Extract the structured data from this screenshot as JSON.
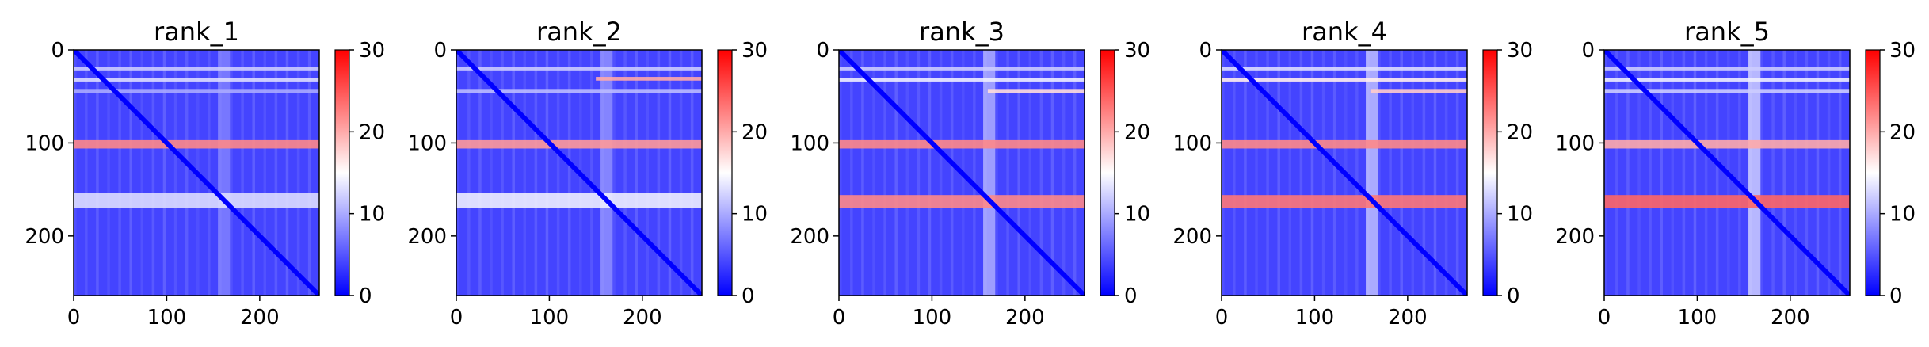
{
  "chart_data": [
    {
      "type": "heatmap",
      "title": "rank_1",
      "matrix_size": 264,
      "xlim": [
        0,
        264
      ],
      "ylim": [
        264,
        0
      ],
      "x_ticks": [
        0,
        100,
        200
      ],
      "y_ticks": [
        0,
        100,
        200
      ],
      "colorbar": {
        "range": [
          0,
          30
        ],
        "ticks": [
          0,
          10,
          20,
          30
        ],
        "colormap": "bwr"
      },
      "diagonal": {
        "value": 0
      },
      "background_level": 4,
      "bands": [
        {
          "y": [
            18,
            22
          ],
          "x": [
            0,
            264
          ],
          "value": 12
        },
        {
          "y": [
            30,
            34
          ],
          "x": [
            0,
            264
          ],
          "value": 13
        },
        {
          "y": [
            42,
            46
          ],
          "x": [
            0,
            264
          ],
          "value": 10
        },
        {
          "y": [
            97,
            106
          ],
          "x": [
            0,
            264
          ],
          "value": 22
        },
        {
          "y": [
            154,
            170
          ],
          "x": [
            0,
            264
          ],
          "value": 13
        }
      ],
      "vertical_bands": [
        {
          "x": [
            155,
            168
          ],
          "value": 8
        }
      ]
    },
    {
      "type": "heatmap",
      "title": "rank_2",
      "matrix_size": 264,
      "xlim": [
        0,
        264
      ],
      "ylim": [
        264,
        0
      ],
      "x_ticks": [
        0,
        100,
        200
      ],
      "y_ticks": [
        0,
        100,
        200
      ],
      "colorbar": {
        "range": [
          0,
          30
        ],
        "ticks": [
          0,
          10,
          20,
          30
        ],
        "colormap": "bwr"
      },
      "diagonal": {
        "value": 0
      },
      "background_level": 4,
      "bands": [
        {
          "y": [
            18,
            22
          ],
          "x": [
            0,
            264
          ],
          "value": 12
        },
        {
          "y": [
            29,
            33
          ],
          "x": [
            150,
            264
          ],
          "value": 20
        },
        {
          "y": [
            42,
            46
          ],
          "x": [
            0,
            264
          ],
          "value": 11
        },
        {
          "y": [
            97,
            106
          ],
          "x": [
            0,
            264
          ],
          "value": 21
        },
        {
          "y": [
            154,
            170
          ],
          "x": [
            0,
            264
          ],
          "value": 14
        }
      ],
      "vertical_bands": [
        {
          "x": [
            155,
            168
          ],
          "value": 9
        }
      ]
    },
    {
      "type": "heatmap",
      "title": "rank_3",
      "matrix_size": 264,
      "xlim": [
        0,
        264
      ],
      "ylim": [
        264,
        0
      ],
      "x_ticks": [
        0,
        100,
        200
      ],
      "y_ticks": [
        0,
        100,
        200
      ],
      "colorbar": {
        "range": [
          0,
          30
        ],
        "ticks": [
          0,
          10,
          20,
          30
        ],
        "colormap": "bwr"
      },
      "diagonal": {
        "value": 0
      },
      "background_level": 4,
      "bands": [
        {
          "y": [
            18,
            22
          ],
          "x": [
            0,
            264
          ],
          "value": 12
        },
        {
          "y": [
            30,
            34
          ],
          "x": [
            0,
            264
          ],
          "value": 14
        },
        {
          "y": [
            42,
            46
          ],
          "x": [
            160,
            264
          ],
          "value": 17
        },
        {
          "y": [
            97,
            106
          ],
          "x": [
            0,
            264
          ],
          "value": 22
        },
        {
          "y": [
            156,
            170
          ],
          "x": [
            0,
            264
          ],
          "value": 22
        }
      ],
      "vertical_bands": [
        {
          "x": [
            155,
            168
          ],
          "value": 11
        }
      ]
    },
    {
      "type": "heatmap",
      "title": "rank_4",
      "matrix_size": 264,
      "xlim": [
        0,
        264
      ],
      "ylim": [
        264,
        0
      ],
      "x_ticks": [
        0,
        100,
        200
      ],
      "y_ticks": [
        0,
        100,
        200
      ],
      "colorbar": {
        "range": [
          0,
          30
        ],
        "ticks": [
          0,
          10,
          20,
          30
        ],
        "colormap": "bwr"
      },
      "diagonal": {
        "value": 0
      },
      "background_level": 4,
      "bands": [
        {
          "y": [
            18,
            22
          ],
          "x": [
            0,
            264
          ],
          "value": 13
        },
        {
          "y": [
            30,
            34
          ],
          "x": [
            0,
            264
          ],
          "value": 16
        },
        {
          "y": [
            42,
            46
          ],
          "x": [
            160,
            264
          ],
          "value": 18
        },
        {
          "y": [
            97,
            106
          ],
          "x": [
            0,
            264
          ],
          "value": 22
        },
        {
          "y": [
            156,
            170
          ],
          "x": [
            0,
            264
          ],
          "value": 23
        }
      ],
      "vertical_bands": [
        {
          "x": [
            155,
            168
          ],
          "value": 12
        }
      ]
    },
    {
      "type": "heatmap",
      "title": "rank_5",
      "matrix_size": 264,
      "xlim": [
        0,
        264
      ],
      "ylim": [
        264,
        0
      ],
      "x_ticks": [
        0,
        100,
        200
      ],
      "y_ticks": [
        0,
        100,
        200
      ],
      "colorbar": {
        "range": [
          0,
          30
        ],
        "ticks": [
          0,
          10,
          20,
          30
        ],
        "colormap": "bwr"
      },
      "diagonal": {
        "value": 0
      },
      "background_level": 4,
      "bands": [
        {
          "y": [
            18,
            22
          ],
          "x": [
            0,
            264
          ],
          "value": 12
        },
        {
          "y": [
            30,
            34
          ],
          "x": [
            0,
            264
          ],
          "value": 14
        },
        {
          "y": [
            42,
            46
          ],
          "x": [
            0,
            264
          ],
          "value": 12
        },
        {
          "y": [
            97,
            106
          ],
          "x": [
            0,
            264
          ],
          "value": 20
        },
        {
          "y": [
            156,
            170
          ],
          "x": [
            0,
            264
          ],
          "value": 24
        }
      ],
      "vertical_bands": [
        {
          "x": [
            155,
            168
          ],
          "value": 13
        }
      ]
    }
  ]
}
